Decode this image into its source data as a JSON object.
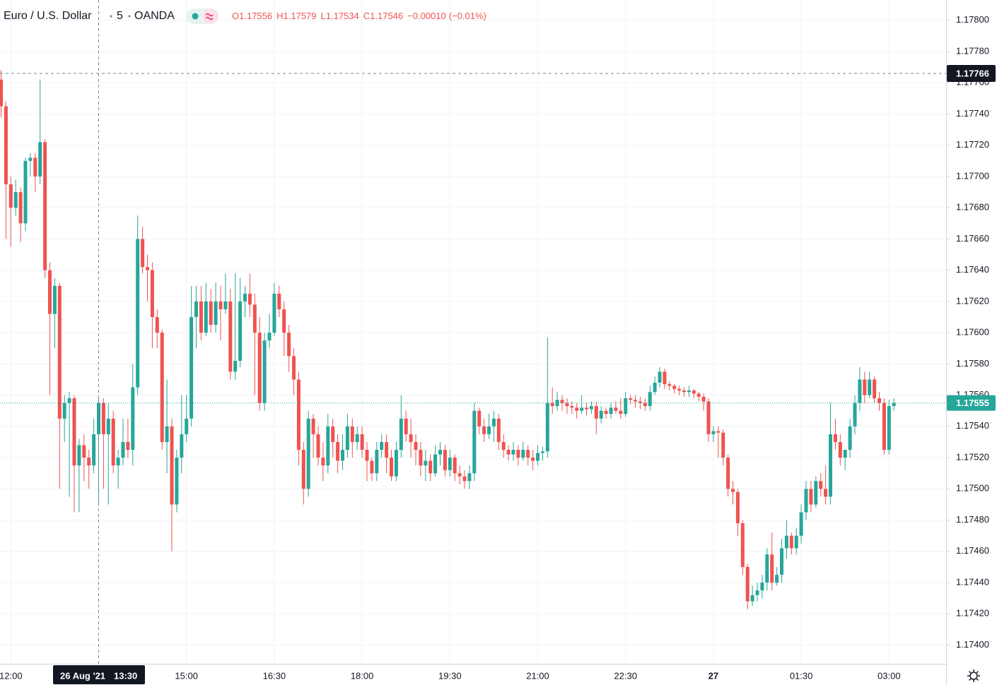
{
  "chart_data": {
    "type": "candlestick",
    "title": "Euro / U.S. Dollar",
    "interval": "5",
    "source": "OANDA",
    "legend": [
      {
        "label": "O",
        "value": 1.17556
      },
      {
        "label": "H",
        "value": 1.17579
      },
      {
        "label": "L",
        "value": 1.17534
      },
      {
        "label": "C",
        "value": 1.17546
      }
    ],
    "change": "−0.00010",
    "change_percent": "(−0.01%)",
    "up_color": "#26a69a",
    "down_color": "#ef5350",
    "grid": true,
    "ylim": [
      1.17388,
      1.17813
    ],
    "yticks": [
      {
        "value": 1.174,
        "label": "1.17400"
      },
      {
        "value": 1.1742,
        "label": "1.17420"
      },
      {
        "value": 1.1744,
        "label": "1.17440"
      },
      {
        "value": 1.1746,
        "label": "1.17460"
      },
      {
        "value": 1.1748,
        "label": "1.17480"
      },
      {
        "value": 1.175,
        "label": "1.17500"
      },
      {
        "value": 1.1752,
        "label": "1.17520"
      },
      {
        "value": 1.1754,
        "label": "1.17540"
      },
      {
        "value": 1.1756,
        "label": "1.17560"
      },
      {
        "value": 1.1758,
        "label": "1.17580"
      },
      {
        "value": 1.176,
        "label": "1.17600"
      },
      {
        "value": 1.1762,
        "label": "1.17620"
      },
      {
        "value": 1.1764,
        "label": "1.17640"
      },
      {
        "value": 1.1766,
        "label": "1.17660"
      },
      {
        "value": 1.1768,
        "label": "1.17680"
      },
      {
        "value": 1.177,
        "label": "1.17700"
      },
      {
        "value": 1.1772,
        "label": "1.17720"
      },
      {
        "value": 1.1774,
        "label": "1.17740"
      },
      {
        "value": 1.1776,
        "label": "1.17760"
      },
      {
        "value": 1.1778,
        "label": "1.17780"
      },
      {
        "value": 1.178,
        "label": "1.17800"
      }
    ],
    "last_price": 1.17555,
    "crosshair": {
      "price": 1.17766,
      "date": "26 Aug '21",
      "time": "13:30"
    },
    "categories": [
      null,
      null,
      "12:00",
      null,
      null,
      null,
      null,
      null,
      null,
      null,
      null,
      null,
      null,
      null,
      null,
      null,
      null,
      null,
      null,
      null,
      null,
      null,
      null,
      null,
      null,
      null,
      null,
      null,
      null,
      null,
      null,
      null,
      null,
      null,
      null,
      null,
      null,
      null,
      "15:00",
      null,
      null,
      null,
      null,
      null,
      null,
      null,
      null,
      null,
      null,
      null,
      null,
      null,
      null,
      null,
      null,
      null,
      "16:30",
      null,
      null,
      null,
      null,
      null,
      null,
      null,
      null,
      null,
      null,
      null,
      null,
      null,
      null,
      null,
      null,
      null,
      "18:00",
      null,
      null,
      null,
      null,
      null,
      null,
      null,
      null,
      null,
      null,
      null,
      null,
      null,
      null,
      null,
      null,
      null,
      "19:30",
      null,
      null,
      null,
      null,
      null,
      null,
      null,
      null,
      null,
      null,
      null,
      null,
      null,
      null,
      null,
      null,
      null,
      "21:00",
      null,
      null,
      null,
      null,
      null,
      null,
      null,
      null,
      null,
      null,
      null,
      null,
      null,
      null,
      null,
      null,
      null,
      "22:30",
      null,
      null,
      null,
      null,
      null,
      null,
      null,
      null,
      null,
      null,
      null,
      null,
      null,
      null,
      null,
      null,
      null,
      "27",
      null,
      null,
      null,
      null,
      null,
      null,
      null,
      null,
      null,
      null,
      null,
      null,
      null,
      null,
      null,
      null,
      null,
      "01:30",
      null,
      null,
      null,
      null,
      null,
      null,
      null,
      null,
      null,
      null,
      null,
      null,
      null,
      null,
      null,
      null,
      null,
      "03:00",
      null
    ],
    "open": [
      1.17762,
      1.17745,
      1.17695,
      1.1768,
      1.1769,
      1.1767,
      1.1771,
      1.17712,
      1.177,
      1.17722,
      1.1764,
      1.17612,
      1.1763,
      1.17545,
      1.17555,
      1.17558,
      1.17515,
      1.17528,
      1.1752,
      1.17515,
      1.17535,
      1.17555,
      1.17535,
      1.17545,
      1.17515,
      1.1752,
      1.1753,
      1.17525,
      1.17565,
      1.1766,
      1.17642,
      1.1764,
      1.1761,
      1.176,
      1.1753,
      1.1754,
      1.1749,
      1.1752,
      1.17535,
      1.17545,
      1.1761,
      1.1762,
      1.176,
      1.1762,
      1.17605,
      1.1762,
      1.17615,
      1.1762,
      1.17575,
      1.17582,
      1.1762,
      1.17625,
      1.17618,
      1.176,
      1.17555,
      1.17595,
      1.176,
      1.17625,
      1.17615,
      1.176,
      1.17585,
      1.1757,
      1.17525,
      1.175,
      1.17545,
      1.17535,
      1.1752,
      1.17515,
      1.1754,
      1.1753,
      1.17518,
      1.17525,
      1.1754,
      1.1753,
      1.17535,
      1.17525,
      1.17518,
      1.1751,
      1.17525,
      1.1753,
      1.1752,
      1.17508,
      1.17525,
      1.17545,
      1.17535,
      1.1753,
      1.17525,
      1.17515,
      1.17518,
      1.1751,
      1.17522,
      1.17525,
      1.17512,
      1.1752,
      1.1751,
      1.17508,
      1.17505,
      1.1751,
      1.1755,
      1.1754,
      1.17535,
      1.1754,
      1.17545,
      1.1753,
      1.17525,
      1.17522,
      1.17525,
      1.1752,
      1.17525,
      1.1752,
      1.17518,
      1.17523,
      1.17524,
      1.17555,
      1.17553,
      1.17557,
      1.17555,
      1.17553,
      1.17552,
      1.1755,
      1.17552,
      1.17551,
      1.17553,
      1.17545,
      1.1755,
      1.17548,
      1.17552,
      1.1755,
      1.17548,
      1.17558,
      1.17557,
      1.17556,
      1.17555,
      1.17553,
      1.17562,
      1.17568,
      1.17575,
      1.17567,
      1.17566,
      1.17564,
      1.17563,
      1.17562,
      1.17563,
      1.17561,
      1.17559,
      1.17556,
      1.17535,
      1.17537,
      1.17536,
      1.1752,
      1.175,
      1.17498,
      1.17478,
      1.1745,
      1.17428,
      1.17432,
      1.17435,
      1.1744,
      1.17458,
      1.1744,
      1.17445,
      1.17462,
      1.1747,
      1.17462,
      1.1747,
      1.17485,
      1.175,
      1.1749,
      1.17505,
      1.175,
      1.17495,
      1.17535,
      1.1753,
      1.1752,
      1.17525,
      1.1754,
      1.17555,
      1.1757,
      1.1756,
      1.1757,
      1.17558,
      1.17555,
      1.17525,
      1.17553
    ],
    "high": [
      1.17768,
      1.17748,
      1.177,
      1.17698,
      1.17693,
      1.17712,
      1.17715,
      1.17715,
      1.17762,
      1.17724,
      1.17645,
      1.17635,
      1.17632,
      1.1756,
      1.17562,
      1.1756,
      1.17532,
      1.17535,
      1.17525,
      1.17545,
      1.1756,
      1.17558,
      1.17555,
      1.1755,
      1.17525,
      1.17545,
      1.17545,
      1.1758,
      1.17675,
      1.17668,
      1.1765,
      1.17645,
      1.17615,
      1.17602,
      1.1757,
      1.17545,
      1.17525,
      1.1756,
      1.1756,
      1.1763,
      1.1763,
      1.1763,
      1.17632,
      1.17628,
      1.17632,
      1.1763,
      1.17638,
      1.17628,
      1.17638,
      1.17635,
      1.1763,
      1.17638,
      1.17625,
      1.1761,
      1.176,
      1.17612,
      1.17632,
      1.1763,
      1.1762,
      1.17605,
      1.1759,
      1.17575,
      1.1753,
      1.1755,
      1.17548,
      1.1754,
      1.1753,
      1.17548,
      1.17545,
      1.17535,
      1.17535,
      1.17548,
      1.17545,
      1.1754,
      1.1754,
      1.1753,
      1.1752,
      1.1753,
      1.17535,
      1.17535,
      1.17525,
      1.1753,
      1.1756,
      1.1755,
      1.17545,
      1.17535,
      1.1753,
      1.17525,
      1.17522,
      1.17528,
      1.1753,
      1.17528,
      1.17525,
      1.17522,
      1.17515,
      1.17512,
      1.17515,
      1.17555,
      1.17552,
      1.17545,
      1.17548,
      1.1755,
      1.17548,
      1.17535,
      1.17528,
      1.1753,
      1.17528,
      1.1753,
      1.17528,
      1.17525,
      1.17528,
      1.17527,
      1.17597,
      1.17565,
      1.17562,
      1.1756,
      1.17558,
      1.17556,
      1.17555,
      1.1756,
      1.17555,
      1.17556,
      1.17556,
      1.17553,
      1.17552,
      1.17555,
      1.17556,
      1.17558,
      1.17562,
      1.1756,
      1.1756,
      1.17559,
      1.17558,
      1.17566,
      1.17572,
      1.17578,
      1.17577,
      1.17569,
      1.17567,
      1.17566,
      1.17565,
      1.17566,
      1.17564,
      1.17562,
      1.17561,
      1.17558,
      1.1754,
      1.1754,
      1.17538,
      1.17522,
      1.17505,
      1.175,
      1.1748,
      1.17452,
      1.17438,
      1.1744,
      1.17445,
      1.17462,
      1.17472,
      1.1745,
      1.17468,
      1.1748,
      1.17472,
      1.17475,
      1.1749,
      1.17505,
      1.17505,
      1.17508,
      1.1751,
      1.17515,
      1.17555,
      1.17545,
      1.17535,
      1.17525,
      1.17545,
      1.1756,
      1.17578,
      1.17575,
      1.17575,
      1.17572,
      1.17562,
      1.17558,
      1.17557,
      1.17558
    ],
    "low": [
      1.17738,
      1.1766,
      1.17655,
      1.17675,
      1.17658,
      1.17665,
      1.177,
      1.1769,
      1.17695,
      1.17635,
      1.1756,
      1.1759,
      1.175,
      1.1753,
      1.17495,
      1.17485,
      1.17485,
      1.17505,
      1.175,
      1.1751,
      1.1749,
      1.175,
      1.1749,
      1.1751,
      1.175,
      1.17515,
      1.1752,
      1.17515,
      1.1756,
      1.17638,
      1.1762,
      1.1759,
      1.1759,
      1.17525,
      1.1751,
      1.1746,
      1.17485,
      1.1751,
      1.1753,
      1.1754,
      1.1759,
      1.17595,
      1.17598,
      1.176,
      1.176,
      1.17595,
      1.17612,
      1.1757,
      1.1757,
      1.17578,
      1.1761,
      1.1761,
      1.1756,
      1.1755,
      1.1755,
      1.1759,
      1.17598,
      1.1761,
      1.17585,
      1.17575,
      1.1756,
      1.17515,
      1.1749,
      1.17495,
      1.1752,
      1.17515,
      1.17505,
      1.1751,
      1.1752,
      1.1751,
      1.17512,
      1.1752,
      1.1752,
      1.17525,
      1.1752,
      1.17505,
      1.17505,
      1.17505,
      1.1752,
      1.1751,
      1.17505,
      1.17505,
      1.1752,
      1.1753,
      1.1752,
      1.17515,
      1.17508,
      1.17505,
      1.17505,
      1.17508,
      1.17515,
      1.17508,
      1.17508,
      1.17505,
      1.17503,
      1.175,
      1.175,
      1.17505,
      1.17535,
      1.1753,
      1.17532,
      1.1753,
      1.17525,
      1.1752,
      1.17518,
      1.17518,
      1.17515,
      1.17518,
      1.17515,
      1.17512,
      1.17515,
      1.17518,
      1.1752,
      1.17548,
      1.1755,
      1.1755,
      1.17548,
      1.17548,
      1.17545,
      1.17548,
      1.17547,
      1.17548,
      1.17535,
      1.17542,
      1.17545,
      1.17545,
      1.17548,
      1.17545,
      1.17546,
      1.17554,
      1.17552,
      1.17551,
      1.1755,
      1.1755,
      1.1756,
      1.17565,
      1.17564,
      1.17563,
      1.17561,
      1.1756,
      1.17559,
      1.17559,
      1.17558,
      1.17556,
      1.1755,
      1.1753,
      1.1753,
      1.1752,
      1.17515,
      1.17495,
      1.1749,
      1.1747,
      1.17445,
      1.17423,
      1.17425,
      1.17428,
      1.1743,
      1.17435,
      1.17435,
      1.17438,
      1.1744,
      1.17455,
      1.17458,
      1.17458,
      1.17465,
      1.1748,
      1.17485,
      1.17488,
      1.17495,
      1.1749,
      1.1749,
      1.17525,
      1.17515,
      1.17512,
      1.1752,
      1.17535,
      1.1755,
      1.17555,
      1.17558,
      1.17555,
      1.1755,
      1.17522,
      1.17522,
      1.1755
    ],
    "close": [
      1.17745,
      1.17695,
      1.1768,
      1.1769,
      1.1767,
      1.1771,
      1.17712,
      1.177,
      1.17722,
      1.1764,
      1.17612,
      1.1763,
      1.17545,
      1.17555,
      1.17558,
      1.17515,
      1.17528,
      1.1752,
      1.17515,
      1.17535,
      1.17555,
      1.17535,
      1.17545,
      1.17515,
      1.1752,
      1.1753,
      1.17525,
      1.17565,
      1.1766,
      1.17642,
      1.1764,
      1.1761,
      1.176,
      1.1753,
      1.1754,
      1.1749,
      1.1752,
      1.17535,
      1.17545,
      1.1761,
      1.1762,
      1.176,
      1.1762,
      1.17605,
      1.1762,
      1.17615,
      1.1762,
      1.17575,
      1.17582,
      1.1762,
      1.17625,
      1.17618,
      1.176,
      1.17555,
      1.17595,
      1.176,
      1.17625,
      1.17615,
      1.176,
      1.17585,
      1.1757,
      1.17525,
      1.175,
      1.17545,
      1.17535,
      1.1752,
      1.17515,
      1.1754,
      1.1753,
      1.17518,
      1.17525,
      1.1754,
      1.1753,
      1.17535,
      1.17525,
      1.17518,
      1.1751,
      1.17525,
      1.1753,
      1.1752,
      1.17508,
      1.17525,
      1.17545,
      1.17535,
      1.1753,
      1.17525,
      1.17515,
      1.17518,
      1.1751,
      1.17522,
      1.17525,
      1.17512,
      1.1752,
      1.1751,
      1.17508,
      1.17505,
      1.1751,
      1.1755,
      1.1754,
      1.17535,
      1.1754,
      1.17545,
      1.1753,
      1.17525,
      1.17522,
      1.17525,
      1.1752,
      1.17525,
      1.1752,
      1.17518,
      1.17523,
      1.17524,
      1.17555,
      1.17553,
      1.17557,
      1.17555,
      1.17553,
      1.17552,
      1.1755,
      1.17552,
      1.17551,
      1.17553,
      1.17545,
      1.1755,
      1.17548,
      1.17552,
      1.1755,
      1.17548,
      1.17558,
      1.17557,
      1.17556,
      1.17555,
      1.17553,
      1.17562,
      1.17568,
      1.17575,
      1.17567,
      1.17566,
      1.17564,
      1.17563,
      1.17562,
      1.17563,
      1.17561,
      1.17559,
      1.17556,
      1.17535,
      1.17537,
      1.17536,
      1.1752,
      1.175,
      1.17498,
      1.17478,
      1.1745,
      1.17428,
      1.17432,
      1.17435,
      1.1744,
      1.17458,
      1.1744,
      1.17445,
      1.17462,
      1.1747,
      1.17462,
      1.1747,
      1.17485,
      1.175,
      1.1749,
      1.17505,
      1.175,
      1.17495,
      1.17535,
      1.1753,
      1.1752,
      1.17525,
      1.1754,
      1.17555,
      1.1757,
      1.1756,
      1.1757,
      1.17558,
      1.17555,
      1.17525,
      1.17553,
      1.17555
    ]
  }
}
